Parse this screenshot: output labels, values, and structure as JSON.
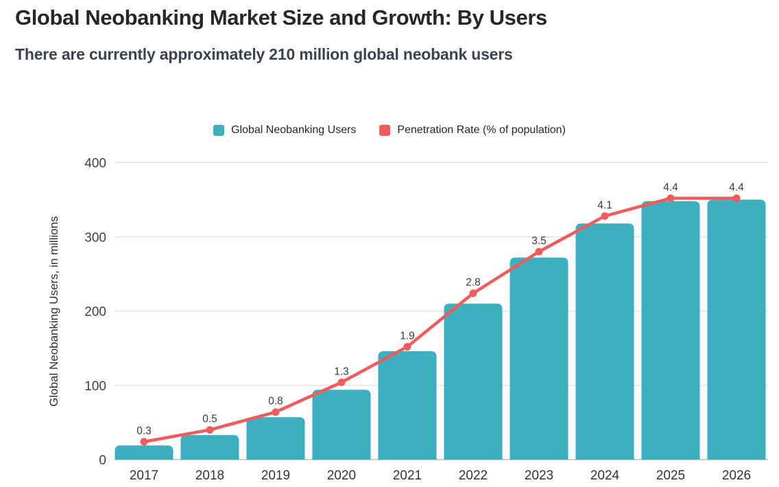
{
  "header": {
    "title": "Global Neobanking Market Size and Growth: By Users",
    "subtitle": "There are currently approximately 210 million global neobank users"
  },
  "legend": [
    {
      "label": "Global Neobanking Users",
      "color": "#3cb0bf"
    },
    {
      "label": "Penetration Rate (% of population)",
      "color": "#f25b5b"
    }
  ],
  "colors": {
    "bar": "#3cb0bf",
    "line": "#f25b5b",
    "gridline": "#e3e3e3",
    "baseline": "#cfcfcf"
  },
  "chart_data": {
    "type": "bar",
    "subtype": "combo-bar-line",
    "title": "Global Neobanking Market Size and Growth: By Users",
    "categories": [
      "2017",
      "2018",
      "2019",
      "2020",
      "2021",
      "2022",
      "2023",
      "2024",
      "2025",
      "2026"
    ],
    "series": [
      {
        "name": "Global Neobanking Users",
        "type": "bar",
        "unit": "millions of users",
        "color": "#3cb0bf",
        "values": [
          19,
          33,
          57,
          94,
          146,
          210,
          272,
          318,
          348,
          350
        ]
      },
      {
        "name": "Penetration Rate (% of population)",
        "type": "line",
        "unit": "% of population",
        "color": "#f25b5b",
        "values": [
          0.3,
          0.5,
          0.8,
          1.3,
          1.9,
          2.8,
          3.5,
          4.1,
          4.4,
          4.4
        ],
        "point_labels": [
          "0.3",
          "0.5",
          "0.8",
          "1.3",
          "1.9",
          "2.8",
          "3.5",
          "4.1",
          "4.4",
          "4.4"
        ]
      }
    ],
    "xlabel": "",
    "ylabel": "Global Neobanking Users, in millions",
    "yticks": [
      0,
      100,
      200,
      300,
      400
    ],
    "ylim": [
      0,
      400
    ],
    "secondary_ylim": [
      0,
      5
    ],
    "grid": true,
    "legend_position": "top-center"
  }
}
